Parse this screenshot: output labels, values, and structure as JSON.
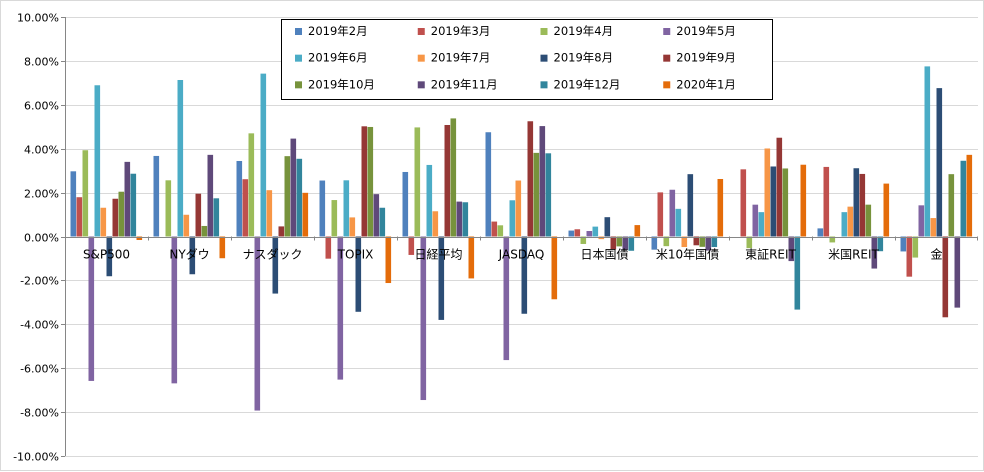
{
  "chart_data": {
    "type": "bar",
    "title": "",
    "xlabel": "",
    "ylabel": "",
    "ylim": [
      -0.1,
      0.1
    ],
    "y_tick_step": 0.02,
    "y_tick_labels": [
      "10.00%",
      "8.00%",
      "6.00%",
      "4.00%",
      "2.00%",
      "0.00%",
      "-2.00%",
      "-4.00%",
      "-6.00%",
      "-8.00%",
      "-10.00%"
    ],
    "grid": "horizontal",
    "legend_position": "top-center",
    "categories": [
      "S&P500",
      "NYダウ",
      "ナスダック",
      "TOPIX",
      "日経平均",
      "JASDAQ",
      "日本国債",
      "米10年国債",
      "東証REIT",
      "米国REIT",
      "金"
    ],
    "series": [
      {
        "name": "2019年2月",
        "color": "#4f81bd",
        "values": [
          0.0297,
          0.0367,
          0.0344,
          0.0255,
          0.0294,
          0.0475,
          0.0027,
          -0.006,
          0.0,
          0.0037,
          -0.0068
        ]
      },
      {
        "name": "2019年3月",
        "color": "#c0504d",
        "values": [
          0.0179,
          0.0,
          0.0261,
          -0.0101,
          -0.0084,
          0.0068,
          0.0033,
          0.0201,
          0.0306,
          0.0317,
          -0.0183
        ]
      },
      {
        "name": "2019年4月",
        "color": "#9bbb59",
        "values": [
          0.0393,
          0.0256,
          0.047,
          0.0166,
          0.0497,
          0.0051,
          -0.0034,
          -0.0044,
          -0.0053,
          -0.0027,
          -0.0096
        ]
      },
      {
        "name": "2019年5月",
        "color": "#8064a2",
        "values": [
          -0.0658,
          -0.0669,
          -0.0793,
          -0.0652,
          -0.0745,
          -0.0563,
          0.0025,
          0.0213,
          0.0145,
          0.0,
          0.0142
        ]
      },
      {
        "name": "2019年6月",
        "color": "#4bacc6",
        "values": [
          0.0689,
          0.0713,
          0.0742,
          0.0256,
          0.0326,
          0.0165,
          0.0045,
          0.0126,
          0.0111,
          0.0111,
          0.0775
        ]
      },
      {
        "name": "2019年7月",
        "color": "#f79646",
        "values": [
          0.0131,
          0.0099,
          0.0211,
          0.0087,
          0.0115,
          0.0255,
          -0.0012,
          -0.0048,
          0.0401,
          0.0136,
          0.0084
        ]
      },
      {
        "name": "2019年8月",
        "color": "#2c4d75",
        "values": [
          -0.0181,
          -0.0172,
          -0.026,
          -0.0343,
          -0.038,
          -0.0352,
          0.0088,
          0.0284,
          0.0319,
          0.0311,
          0.0676
        ]
      },
      {
        "name": "2019年9月",
        "color": "#953735",
        "values": [
          0.0172,
          0.0195,
          0.0046,
          0.0502,
          0.0508,
          0.0525,
          -0.0059,
          -0.004,
          0.045,
          0.0285,
          -0.0368
        ]
      },
      {
        "name": "2019年10月",
        "color": "#77933c",
        "values": [
          0.0204,
          0.0048,
          0.0366,
          0.0499,
          0.0538,
          0.0381,
          -0.0045,
          -0.0047,
          0.031,
          0.0145,
          0.0284
        ]
      },
      {
        "name": "2019年11月",
        "color": "#5f497a",
        "values": [
          0.034,
          0.0372,
          0.0446,
          0.0193,
          0.0159,
          0.0503,
          -0.0061,
          -0.0064,
          -0.0112,
          -0.0146,
          -0.0324
        ]
      },
      {
        "name": "2019年12月",
        "color": "#31859c",
        "values": [
          0.0286,
          0.0174,
          0.0354,
          0.0131,
          0.0156,
          0.0379,
          -0.0065,
          -0.0048,
          -0.0333,
          -0.0067,
          0.0345
        ]
      },
      {
        "name": "2020年1月",
        "color": "#e46c0a",
        "values": [
          -0.0016,
          -0.0099,
          0.0199,
          -0.0212,
          -0.0191,
          -0.0286,
          0.0052,
          0.0262,
          0.0327,
          0.0241,
          0.0372
        ]
      }
    ]
  }
}
